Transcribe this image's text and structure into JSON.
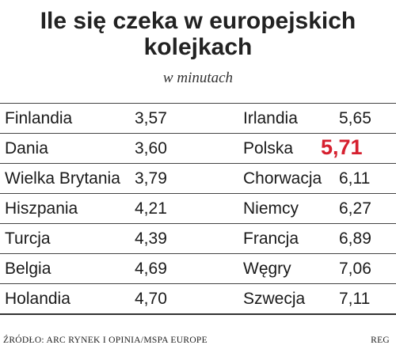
{
  "chart_data": {
    "type": "table",
    "title": "Ile się czeka w europejskich kolejkach",
    "subtitle": "w minutach",
    "rows": [
      [
        {
          "country": "Finlandia",
          "value": "3,57"
        },
        {
          "country": "Irlandia",
          "value": "5,65"
        }
      ],
      [
        {
          "country": "Dania",
          "value": "3,60"
        },
        {
          "country": "Polska",
          "value": "5,71",
          "highlight": true
        }
      ],
      [
        {
          "country": "Wielka Brytania",
          "value": "3,79"
        },
        {
          "country": "Chorwacja",
          "value": "6,11"
        }
      ],
      [
        {
          "country": "Hiszpania",
          "value": "4,21"
        },
        {
          "country": "Niemcy",
          "value": "6,27"
        }
      ],
      [
        {
          "country": "Turcja",
          "value": "4,39"
        },
        {
          "country": "Francja",
          "value": "6,89"
        }
      ],
      [
        {
          "country": "Belgia",
          "value": "4,69"
        },
        {
          "country": "Węgry",
          "value": "7,06"
        }
      ],
      [
        {
          "country": "Holandia",
          "value": "4,70"
        },
        {
          "country": "Szwecja",
          "value": "7,11"
        }
      ]
    ],
    "highlight_color": "#d6202f"
  },
  "footer": {
    "source": "ŹRÓDŁO: ARC RYNEK I OPINIA/MSPA EUROPE",
    "credit": "REG"
  }
}
